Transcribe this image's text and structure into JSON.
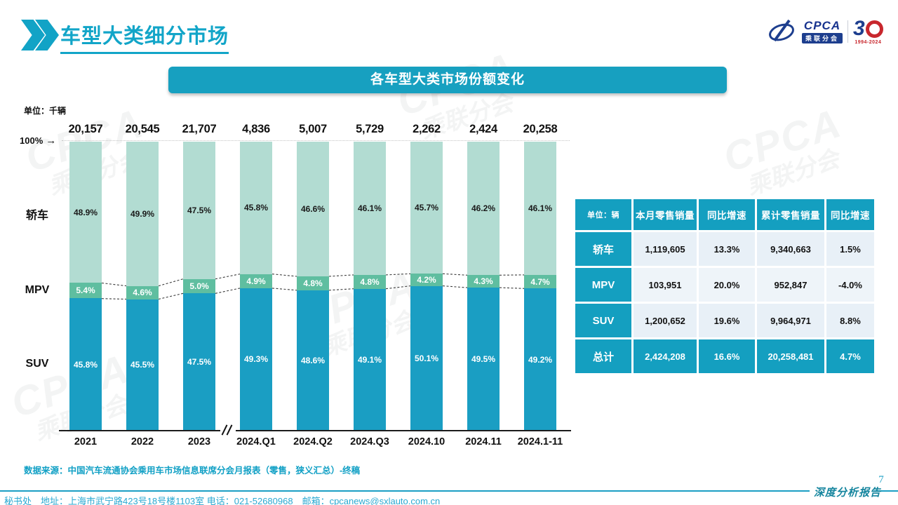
{
  "page": {
    "title": "车型大类细分市场",
    "page_number": "7",
    "report_type": "深度分析报告",
    "data_source": "数据来源：中国汽车流通协会乘用车市场信息联席分会月报表（零售，狭义汇总）-终稿",
    "footer": "秘书处　地址：上海市武宁路423号18号楼1103室 电话：021-52680968　邮箱：cpcanews@sxlauto.com.cn"
  },
  "logo": {
    "cpca": "CPCA",
    "sub": "乘联分会",
    "anniversary_digit": "3",
    "anniversary_years": "1994-2024"
  },
  "banner": {
    "title": "各车型大类市场份额变化"
  },
  "watermark": {
    "line1": "CPCA",
    "line2": "乘联分会"
  },
  "chart_data": {
    "type": "bar",
    "subtype": "100%-stacked-column",
    "title": "各车型大类市场份额变化",
    "unit_label": "单位：千辆",
    "axis_top_label": "100%",
    "axis_top_arrow": "→",
    "categories": [
      "2021",
      "2022",
      "2023",
      "2024.Q1",
      "2024.Q2",
      "2024.Q3",
      "2024.10",
      "2024.11",
      "2024.1-11"
    ],
    "totals": [
      "20,157",
      "20,545",
      "21,707",
      "4,836",
      "5,007",
      "5,729",
      "2,262",
      "2,424",
      "20,258"
    ],
    "series": [
      {
        "name": "轿车",
        "values": [
          48.9,
          49.9,
          47.5,
          45.8,
          46.6,
          46.1,
          45.7,
          46.2,
          46.1
        ],
        "color": "#b2dcd2",
        "label_color": "#1a1a1a"
      },
      {
        "name": "MPV",
        "values": [
          5.4,
          4.6,
          5.0,
          4.9,
          4.8,
          4.8,
          4.2,
          4.3,
          4.7
        ],
        "color": "#5fbea0",
        "label_color": "#ffffff"
      },
      {
        "name": "SUV",
        "values": [
          45.8,
          45.5,
          47.5,
          49.3,
          48.6,
          49.1,
          50.1,
          49.5,
          49.2
        ],
        "color": "#1a9ec3",
        "label_color": "#ffffff"
      }
    ],
    "ylim": [
      0,
      100
    ],
    "grid": false,
    "axis_break_after_index": 2
  },
  "table": {
    "unit_header": "单位：辆",
    "columns": [
      "本月零售销量",
      "同比增速",
      "累计零售销量",
      "同比增速"
    ],
    "rows": [
      {
        "label": "轿车",
        "cells": [
          "1,119,605",
          "13.3%",
          "9,340,663",
          "1.5%"
        ],
        "total": false
      },
      {
        "label": "MPV",
        "cells": [
          "103,951",
          "20.0%",
          "952,847",
          "-4.0%"
        ],
        "total": false
      },
      {
        "label": "SUV",
        "cells": [
          "1,200,652",
          "19.6%",
          "9,964,971",
          "8.8%"
        ],
        "total": false
      },
      {
        "label": "总计",
        "cells": [
          "2,424,208",
          "16.6%",
          "20,258,481",
          "4.7%"
        ],
        "total": true
      }
    ]
  },
  "colors": {
    "accent": "#12a5c8",
    "banner": "#17a0c0",
    "sedan": "#b2dcd2",
    "mpv": "#5fbea0",
    "suv": "#1a9ec3",
    "table_header": "#149fc0",
    "footer_text": "#2aa9d2"
  }
}
